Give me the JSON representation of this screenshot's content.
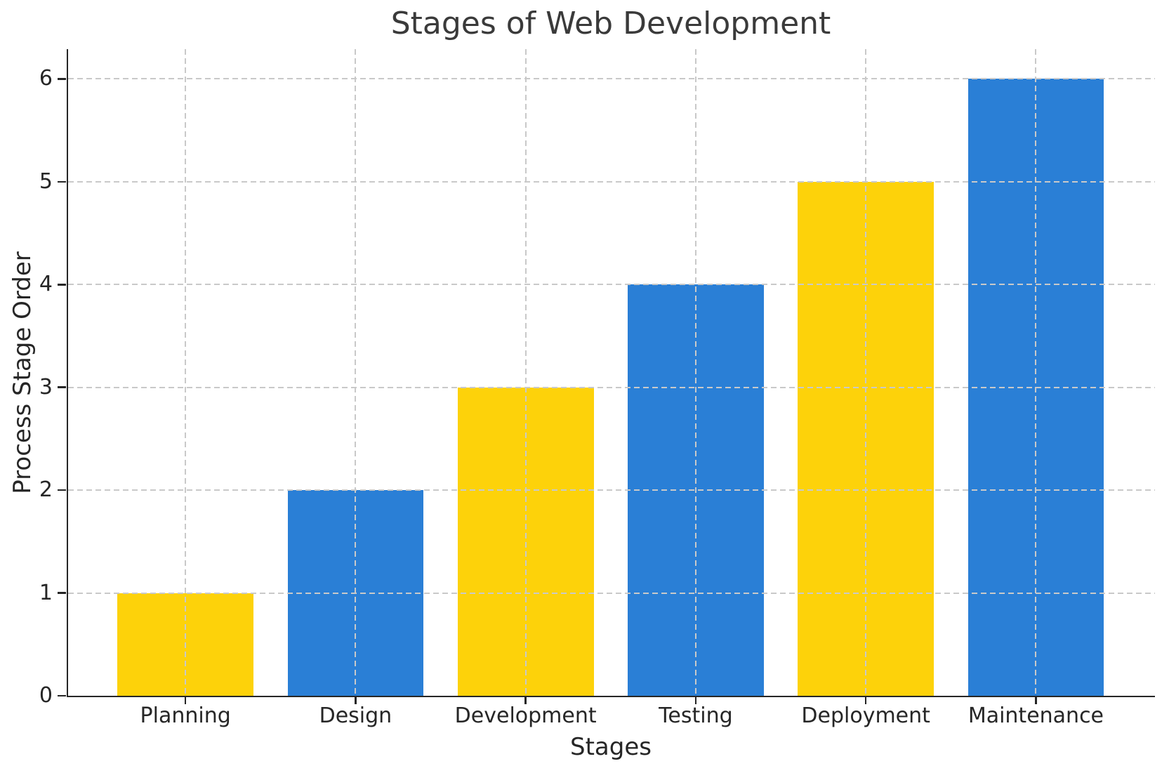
{
  "chart_data": {
    "type": "bar",
    "title": "Stages of Web Development",
    "xlabel": "Stages",
    "ylabel": "Process Stage Order",
    "categories": [
      "Planning",
      "Design",
      "Development",
      "Testing",
      "Deployment",
      "Maintenance"
    ],
    "values": [
      1,
      2,
      3,
      4,
      5,
      6
    ],
    "bar_colors": [
      "#FDD20A",
      "#2A7FD6",
      "#FDD20A",
      "#2A7FD6",
      "#FDD20A",
      "#2A7FD6"
    ],
    "yticks": [
      0,
      1,
      2,
      3,
      4,
      5,
      6
    ],
    "ylim": [
      0,
      6.29
    ],
    "xlim": [
      -0.69,
      5.7
    ],
    "bar_width": 0.8,
    "grid": true,
    "grid_style": "dashed",
    "grid_color": "#c9c9c9",
    "grid_position": "above-bars",
    "axis_color": "#262626",
    "background": "#ffffff",
    "legend": "none"
  }
}
